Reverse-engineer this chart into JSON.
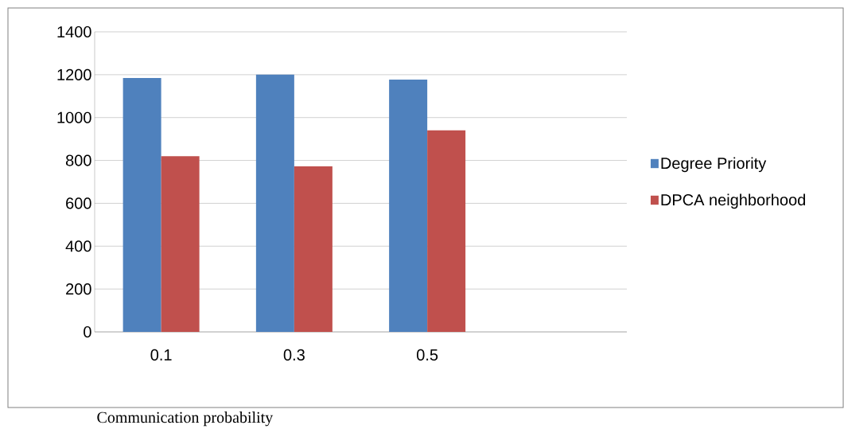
{
  "chart_data": {
    "type": "bar",
    "xlabel": "Communication probability",
    "categories": [
      "0.1",
      "0.3",
      "0.5",
      null
    ],
    "series": [
      {
        "name": "Degree Priority",
        "color": "#4f81bd",
        "values": [
          1185,
          1200,
          1177,
          null
        ]
      },
      {
        "name": "DPCA neighborhood",
        "color": "#c0504d",
        "values": [
          820,
          772,
          940,
          null
        ]
      }
    ],
    "ylim": [
      0,
      1400
    ],
    "yticks": [
      0,
      200,
      400,
      600,
      800,
      1000,
      1200,
      1400
    ],
    "grid": "y",
    "legend": "right"
  }
}
